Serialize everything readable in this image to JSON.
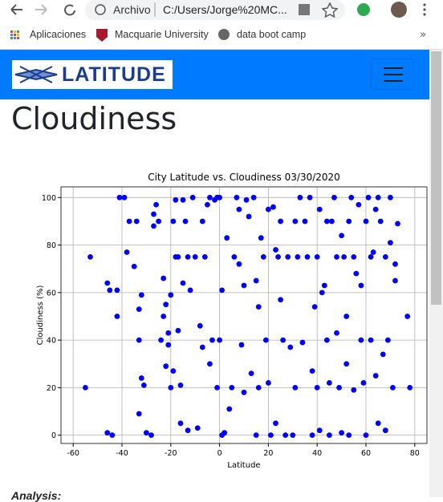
{
  "browser": {
    "site_info": "Archivo",
    "address": "C:/Users/Jorge%20MC...",
    "bookmarks": [
      "Aplicaciones",
      "Macquarie University",
      "data boot camp"
    ]
  },
  "header": {
    "logo": "LATITUDE"
  },
  "heading": "Cloudiness",
  "analysis_label": "Analysis:",
  "chart_data": {
    "type": "scatter",
    "title": "City Latitude vs. Cloudiness 03/30/2020",
    "x_label": "Latitude",
    "y_label": "Cloudiness (%)",
    "color": "blue",
    "grid": true,
    "xlim": [
      -65,
      85
    ],
    "ylim": [
      -3.5,
      104.5
    ],
    "xticks": [
      -60,
      -40,
      -20,
      0,
      20,
      40,
      60,
      80
    ],
    "yticks": [
      0,
      20,
      40,
      60,
      80,
      100
    ],
    "x": [
      -55,
      -53,
      -46,
      -45,
      -46,
      -44,
      -42,
      -42,
      -41,
      -39,
      -38,
      -37,
      -35,
      -34,
      -33,
      -33,
      -32,
      -32,
      -31,
      -33,
      -30,
      -28,
      -27,
      -27,
      -26,
      -25,
      -24,
      -23,
      -23,
      -22,
      -22,
      -21,
      -21,
      -20,
      -20,
      -19,
      -19,
      -18,
      -18,
      -17,
      -17,
      -16,
      -16,
      -15,
      -15,
      -14,
      -13,
      -13,
      -12,
      -11,
      -10,
      -9,
      -8,
      -7,
      -7,
      -6,
      -5,
      -4,
      -4,
      -3,
      -2,
      -1,
      -1,
      0,
      0,
      1,
      1,
      2,
      3,
      4,
      5,
      6,
      7,
      8,
      8,
      9,
      10,
      10,
      11,
      12,
      13,
      14,
      15,
      15,
      16,
      16,
      17,
      18,
      19,
      20,
      20,
      21,
      22,
      23,
      23,
      24,
      25,
      25,
      26,
      27,
      28,
      29,
      30,
      31,
      31,
      32,
      33,
      34,
      35,
      36,
      37,
      38,
      38,
      39,
      40,
      40,
      41,
      41,
      42,
      43,
      44,
      44,
      45,
      45,
      46,
      47,
      48,
      48,
      49,
      50,
      50,
      51,
      52,
      52,
      53,
      53,
      54,
      55,
      55,
      56,
      57,
      58,
      58,
      59,
      60,
      60,
      61,
      62,
      62,
      63,
      64,
      64,
      65,
      65,
      66,
      67,
      68,
      68,
      69,
      70,
      70,
      71,
      72,
      72,
      73,
      77,
      78
    ],
    "values": [
      20,
      75,
      64,
      61,
      1,
      0,
      61,
      50,
      100,
      100,
      77,
      90,
      71,
      90,
      40,
      53,
      59,
      24,
      21,
      9,
      1,
      0,
      88,
      93,
      97,
      90,
      40,
      50,
      66,
      55,
      29,
      38,
      43,
      59,
      20,
      90,
      27,
      99,
      75,
      75,
      44,
      21,
      5,
      99,
      64,
      90,
      75,
      2,
      61,
      100,
      75,
      3,
      46,
      90,
      37,
      75,
      97,
      100,
      30,
      40,
      99,
      100,
      20,
      100,
      40,
      61,
      0,
      1,
      83,
      11,
      20,
      75,
      100,
      95,
      72,
      38,
      63,
      18,
      99,
      92,
      26,
      100,
      65,
      0,
      54,
      20,
      83,
      75,
      40,
      95,
      22,
      0,
      96,
      78,
      5,
      75,
      90,
      57,
      40,
      0,
      75,
      37,
      0,
      90,
      20,
      75,
      100,
      39,
      90,
      75,
      100,
      27,
      0,
      54,
      75,
      20,
      95,
      2,
      60,
      63,
      90,
      40,
      22,
      0,
      90,
      100,
      75,
      43,
      20,
      84,
      1,
      75,
      50,
      30,
      90,
      0,
      100,
      75,
      19,
      68,
      97,
      63,
      40,
      22,
      90,
      0,
      100,
      75,
      40,
      77,
      95,
      25,
      100,
      5,
      90,
      34,
      75,
      2,
      40,
      100,
      81,
      20,
      72,
      65,
      89,
      50,
      20
    ]
  }
}
